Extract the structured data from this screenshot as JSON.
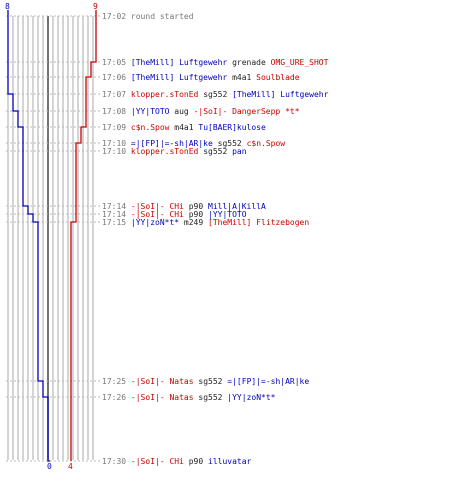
{
  "colors": {
    "blue": "#0000bb",
    "red": "#cc0000",
    "grid": "#aaaaaa",
    "center": "#444444",
    "time": "#777777"
  },
  "scores": {
    "blue_start": "8",
    "red_start": "9",
    "blue_end": "0",
    "red_end": "4"
  },
  "events": [
    {
      "time": "17:02",
      "text": "round started"
    },
    {
      "time": "17:05",
      "killer": "[TheMill] Luftgewehr",
      "weapon": "grenade",
      "victim": "OMG_URE_SHOT"
    },
    {
      "time": "17:06",
      "killer": "[TheMill] Luftgewehr",
      "weapon": "m4a1",
      "victim": "Soulblade"
    },
    {
      "time": "17:07",
      "killer": "klopper.sTonEd",
      "weapon": "sg552",
      "victim": "[TheMill] Luftgewehr"
    },
    {
      "time": "17:08",
      "killer": "|YY|TOTO",
      "weapon": "aug",
      "victim": "-|SoI|- DangerSepp *t*"
    },
    {
      "time": "17:09",
      "killer": "c$n.Spow",
      "weapon": "m4a1",
      "victim": "Tu[BAER]kulose"
    },
    {
      "time": "17:10",
      "killer": "=|[FP]|=-sh|AR|ke",
      "weapon": "sg552",
      "victim": "c$n.Spow"
    },
    {
      "time": "17:10",
      "killer": "klopper.sTonEd",
      "weapon": "sg552",
      "victim": "pan"
    },
    {
      "time": "17:14",
      "killer": "-|SoI|- CHi",
      "weapon": "p90",
      "victim": "Mill|A|KillA"
    },
    {
      "time": "17:14",
      "killer": "-|SoI|- CHi",
      "weapon": "p90",
      "victim": "|YY|TOTO"
    },
    {
      "time": "17:15",
      "killer": "|YY|zoN*t*",
      "weapon": "m249",
      "victim": "[TheMill] Flitzebogen"
    },
    {
      "time": "17:25",
      "killer": "-|SoI|- Natas",
      "weapon": "sg552",
      "victim": "=|[FP]|=-sh|AR|ke"
    },
    {
      "time": "17:26",
      "killer": "-|SoI|- Natas",
      "weapon": "sg552",
      "victim": "|YY|zoN*t*"
    },
    {
      "time": "17:30",
      "killer": "-|SoI|- CHi",
      "weapon": "p90",
      "victim": "illuvatar"
    }
  ]
}
